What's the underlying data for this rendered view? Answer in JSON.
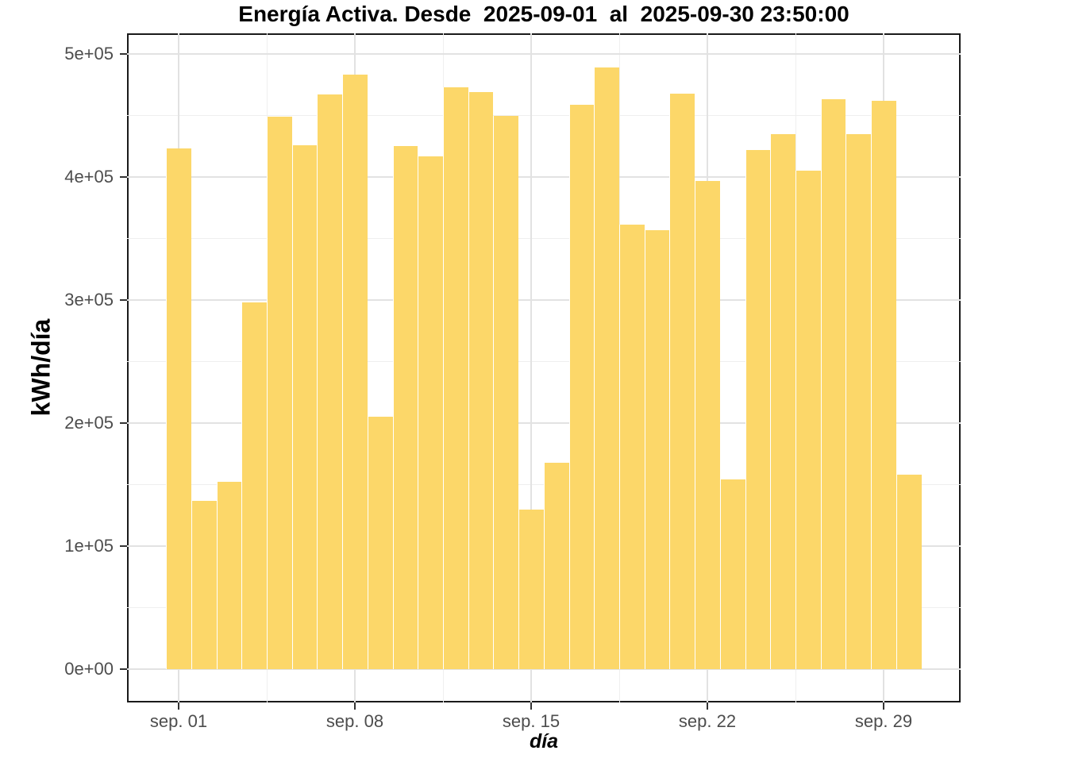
{
  "chart_data": {
    "type": "bar",
    "title": "Energía Activa. Desde  2025-09-01  al  2025-09-30 23:50:00",
    "xlabel": "día",
    "ylabel": "kWh/día",
    "categories": [
      "2025-09-01",
      "2025-09-02",
      "2025-09-03",
      "2025-09-04",
      "2025-09-05",
      "2025-09-06",
      "2025-09-07",
      "2025-09-08",
      "2025-09-09",
      "2025-09-10",
      "2025-09-11",
      "2025-09-12",
      "2025-09-13",
      "2025-09-14",
      "2025-09-15",
      "2025-09-16",
      "2025-09-17",
      "2025-09-18",
      "2025-09-19",
      "2025-09-20",
      "2025-09-21",
      "2025-09-22",
      "2025-09-23",
      "2025-09-24",
      "2025-09-25",
      "2025-09-26",
      "2025-09-27",
      "2025-09-28",
      "2025-09-29",
      "2025-09-30"
    ],
    "values": [
      423000,
      137000,
      152000,
      298000,
      449000,
      426000,
      467000,
      483000,
      205000,
      425000,
      417000,
      473000,
      469000,
      450000,
      130000,
      168000,
      459000,
      489000,
      361000,
      357000,
      468000,
      397000,
      154000,
      422000,
      435000,
      405000,
      463000,
      435000,
      462000,
      158000
    ],
    "ylim": [
      0,
      500000
    ],
    "y_ticks": [
      {
        "label": "0e+00",
        "value": 0
      },
      {
        "label": "1e+05",
        "value": 100000
      },
      {
        "label": "2e+05",
        "value": 200000
      },
      {
        "label": "3e+05",
        "value": 300000
      },
      {
        "label": "4e+05",
        "value": 400000
      },
      {
        "label": "5e+05",
        "value": 500000
      }
    ],
    "y_minor_values": [
      50000,
      150000,
      250000,
      350000,
      450000
    ],
    "x_ticks": [
      {
        "label": "sep. 01",
        "day": 1
      },
      {
        "label": "sep. 08",
        "day": 8
      },
      {
        "label": "sep. 15",
        "day": 15
      },
      {
        "label": "sep. 22",
        "day": 22
      },
      {
        "label": "sep. 29",
        "day": 29
      }
    ],
    "x_minor_days": [
      4.5,
      11.5,
      18.5,
      25.5
    ],
    "grid": true,
    "legend": "none",
    "colors": {
      "bar_fill": "#FCD769",
      "grid_major": "#E2E2E2",
      "grid_minor": "#EFEFEF",
      "panel_border": "#1A1A1A",
      "tick_label": "#4D4D4D",
      "axis_title": "#000000"
    }
  }
}
